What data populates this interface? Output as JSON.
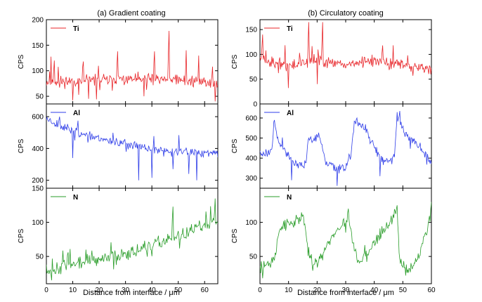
{
  "figure": {
    "left_title": "(a) Gradient coating",
    "right_title": "(b) Circulatory coating",
    "xlabel_left": "Distance from interface / μm",
    "xlabel_right": "Distance from interface / μm"
  },
  "chart_data": [
    {
      "type": "line",
      "id": "a",
      "title": "(a) Gradient coating",
      "xlabel": "Distance from interface / μm",
      "xlim": [
        0,
        65
      ],
      "xticks": [
        0,
        10,
        20,
        30,
        40,
        50,
        60
      ],
      "xticklabels": [
        "0",
        "10",
        "20",
        "30",
        "40",
        "50",
        "60"
      ],
      "panels": [
        {
          "ylabel": "CPS",
          "legend": "Ti",
          "color": "#e8262a",
          "ylim": [
            35,
            200
          ],
          "yticks": [
            50,
            100,
            150,
            200
          ],
          "yticklabels": [
            "50",
            "100",
            "150",
            "200"
          ],
          "seed": 11,
          "noise": 11,
          "spike_prob": 0.05,
          "spike_amp": 30,
          "points": [
            [
              0,
              78
            ],
            [
              10,
              80
            ],
            [
              20,
              82
            ],
            [
              30,
              83
            ],
            [
              40,
              84
            ],
            [
              50,
              82
            ],
            [
              60,
              78
            ],
            [
              65,
              74
            ]
          ],
          "spikes": [
            [
              3,
              120
            ],
            [
              14,
              118
            ],
            [
              27,
              138
            ],
            [
              41,
              138
            ],
            [
              46.5,
              178
            ],
            [
              53,
              140
            ],
            [
              63,
              108
            ]
          ],
          "dips": [
            [
              10,
              42
            ],
            [
              16,
              45
            ],
            [
              19,
              44
            ],
            [
              37,
              50
            ],
            [
              64,
              40
            ]
          ]
        },
        {
          "ylabel": "CPS",
          "legend": "Al",
          "color": "#2f3ee8",
          "ylim": [
            150,
            680
          ],
          "yticks": [
            200,
            400,
            600
          ],
          "yticklabels": [
            "200",
            "400",
            "600"
          ],
          "seed": 23,
          "noise": 28,
          "spike_prob": 0.02,
          "spike_amp": 60,
          "points": [
            [
              0,
              590
            ],
            [
              5,
              545
            ],
            [
              10,
              510
            ],
            [
              15,
              490
            ],
            [
              20,
              465
            ],
            [
              25,
              445
            ],
            [
              30,
              430
            ],
            [
              35,
              410
            ],
            [
              40,
              395
            ],
            [
              45,
              385
            ],
            [
              50,
              380
            ],
            [
              55,
              375
            ],
            [
              60,
              375
            ],
            [
              65,
              370
            ]
          ],
          "spikes": [
            [
              5,
              600
            ],
            [
              12,
              575
            ]
          ],
          "dips": [
            [
              10,
              340
            ],
            [
              35,
              200
            ],
            [
              40,
              215
            ],
            [
              48,
              270
            ],
            [
              54,
              240
            ],
            [
              57,
              200
            ]
          ]
        },
        {
          "ylabel": "CPS",
          "legend": "N",
          "color": "#2a9d2a",
          "ylim": [
            10,
            150
          ],
          "yticks": [
            50,
            100,
            150
          ],
          "yticklabels": [
            "50",
            "100",
            "150"
          ],
          "seed": 37,
          "noise": 9,
          "spike_prob": 0.05,
          "spike_amp": 18,
          "points": [
            [
              0,
              28
            ],
            [
              10,
              38
            ],
            [
              20,
              45
            ],
            [
              30,
              55
            ],
            [
              40,
              65
            ],
            [
              50,
              80
            ],
            [
              60,
              95
            ],
            [
              65,
              105
            ]
          ],
          "spikes": [
            [
              48,
              123
            ],
            [
              64,
              135
            ]
          ],
          "dips": [
            [
              2,
              15
            ]
          ]
        }
      ]
    },
    {
      "type": "line",
      "id": "b",
      "title": "(b) Circulatory coating",
      "xlabel": "Distance from interface / μm",
      "xlim": [
        0,
        60
      ],
      "xticks": [
        0,
        10,
        20,
        30,
        40,
        50,
        60
      ],
      "xticklabels": [
        "0",
        "10",
        "20",
        "30",
        "40",
        "50",
        "60"
      ],
      "panels": [
        {
          "ylabel": "CPS",
          "legend": "Ti",
          "color": "#e8262a",
          "ylim": [
            0,
            170
          ],
          "yticks": [
            0,
            50,
            100,
            150
          ],
          "yticklabels": [
            "0",
            "50",
            "100",
            "150"
          ],
          "seed": 51,
          "noise": 11,
          "spike_prob": 0.04,
          "spike_amp": 25,
          "points": [
            [
              0,
              90
            ],
            [
              10,
              78
            ],
            [
              20,
              88
            ],
            [
              30,
              80
            ],
            [
              40,
              85
            ],
            [
              50,
              80
            ],
            [
              60,
              70
            ]
          ],
          "spikes": [
            [
              1,
              140
            ],
            [
              17,
              165
            ],
            [
              22,
              165
            ],
            [
              43,
              118
            ]
          ],
          "dips": [
            [
              10,
              32
            ],
            [
              20,
              40
            ]
          ]
        },
        {
          "ylabel": "CPS",
          "legend": "Al",
          "color": "#2f3ee8",
          "ylim": [
            250,
            670
          ],
          "yticks": [
            300,
            400,
            500,
            600
          ],
          "yticklabels": [
            "300",
            "400",
            "500",
            "600"
          ],
          "seed": 63,
          "noise": 22,
          "spike_prob": 0.02,
          "spike_amp": 40,
          "points": [
            [
              0,
              420
            ],
            [
              4,
              440
            ],
            [
              5,
              560
            ],
            [
              7,
              470
            ],
            [
              12,
              375
            ],
            [
              15,
              365
            ],
            [
              16,
              380
            ],
            [
              17,
              500
            ],
            [
              21,
              510
            ],
            [
              23,
              380
            ],
            [
              27,
              350
            ],
            [
              30,
              365
            ],
            [
              32,
              420
            ],
            [
              33,
              580
            ],
            [
              37,
              550
            ],
            [
              40,
              450
            ],
            [
              43,
              380
            ],
            [
              47,
              400
            ],
            [
              48,
              610
            ],
            [
              51,
              520
            ],
            [
              55,
              470
            ],
            [
              58,
              420
            ],
            [
              60,
              380
            ]
          ],
          "spikes": [
            [
              49,
              635
            ],
            [
              34,
              600
            ],
            [
              5,
              590
            ]
          ],
          "dips": [
            [
              27,
              262
            ],
            [
              11,
              290
            ],
            [
              42,
              310
            ]
          ]
        },
        {
          "ylabel": "CPS",
          "legend": "N",
          "color": "#2a9d2a",
          "ylim": [
            10,
            150
          ],
          "yticks": [
            50,
            100
          ],
          "yticklabels": [
            "50",
            "100"
          ],
          "seed": 79,
          "noise": 9,
          "spike_prob": 0.03,
          "spike_amp": 15,
          "points": [
            [
              0,
              35
            ],
            [
              5,
              45
            ],
            [
              7,
              95
            ],
            [
              10,
              100
            ],
            [
              15,
              105
            ],
            [
              16,
              90
            ],
            [
              17,
              50
            ],
            [
              20,
              40
            ],
            [
              24,
              70
            ],
            [
              28,
              95
            ],
            [
              31,
              105
            ],
            [
              33,
              60
            ],
            [
              35,
              40
            ],
            [
              38,
              55
            ],
            [
              42,
              80
            ],
            [
              46,
              105
            ],
            [
              48,
              115
            ],
            [
              49,
              40
            ],
            [
              52,
              30
            ],
            [
              55,
              45
            ],
            [
              58,
              85
            ],
            [
              60,
              105
            ]
          ],
          "spikes": [
            [
              48,
              125
            ],
            [
              60,
              130
            ],
            [
              31,
              120
            ]
          ],
          "dips": [
            [
              1,
              18
            ],
            [
              51,
              22
            ]
          ]
        }
      ]
    }
  ]
}
